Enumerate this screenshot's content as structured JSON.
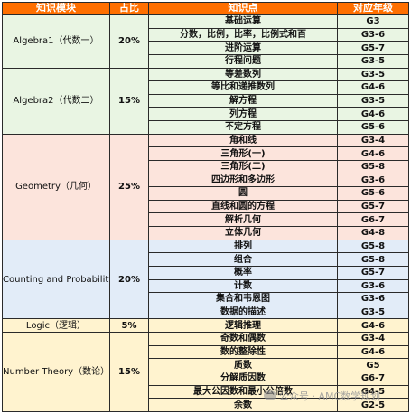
{
  "headers": [
    "知识模块",
    "占比",
    "知识点",
    "对应年级"
  ],
  "colors": {
    "header": "#ff6f00",
    "green": "#e9f5e3",
    "red": "#fce4dc",
    "blue": "#e2ecf8",
    "yellow": "#fff3cf"
  },
  "sections": [
    {
      "module": "Algebra1（代数一）",
      "percent": "20%",
      "color": "#e9f5e3",
      "rows": [
        {
          "topic": "基础运算",
          "grade": "G3"
        },
        {
          "topic": "分数，比例，比率，比例式和百",
          "grade": "G3-6"
        },
        {
          "topic": "进阶运算",
          "grade": "G5-7"
        },
        {
          "topic": "行程问题",
          "grade": "G3-5"
        }
      ]
    },
    {
      "module": "Algebra2（代数二）",
      "percent": "15%",
      "color": "#e9f5e3",
      "rows": [
        {
          "topic": "等差数列",
          "grade": "G3-5"
        },
        {
          "topic": "等比和递推数列",
          "grade": "G4-6"
        },
        {
          "topic": "解方程",
          "grade": "G3-5"
        },
        {
          "topic": "列方程",
          "grade": "G4-6"
        },
        {
          "topic": "不定方程",
          "grade": "G5-6"
        }
      ]
    },
    {
      "module": "Geometry（几何）",
      "percent": "25%",
      "color": "#fce4dc",
      "rows": [
        {
          "topic": "角和线",
          "grade": "G3-4"
        },
        {
          "topic": "三角形(一)",
          "grade": "G4-6"
        },
        {
          "topic": "三角形(二)",
          "grade": "G5-8"
        },
        {
          "topic": "四边形和多边形",
          "grade": "G3-6"
        },
        {
          "topic": "圆",
          "grade": "G5-6"
        },
        {
          "topic": "直线和圆的方程",
          "grade": "G5-7"
        },
        {
          "topic": "解析几何",
          "grade": "G6-7"
        },
        {
          "topic": "立体几何",
          "grade": "G4-8"
        }
      ]
    },
    {
      "module": "Counting and Probability（计数和概率）",
      "percent": "20%",
      "color": "#e2ecf8",
      "rows": [
        {
          "topic": "排列",
          "grade": "G5-8"
        },
        {
          "topic": "组合",
          "grade": "G5-8"
        },
        {
          "topic": "概率",
          "grade": "G5-7"
        },
        {
          "topic": "计数",
          "grade": "G3-6"
        },
        {
          "topic": "集合和韦恩图",
          "grade": "G3-6"
        },
        {
          "topic": "数据的描述",
          "grade": "G3-5"
        }
      ]
    },
    {
      "module": "Logic（逻辑）",
      "percent": "5%",
      "color": "#fff3cf",
      "rows": [
        {
          "topic": "逻辑推理",
          "grade": "G4-6"
        }
      ]
    },
    {
      "module": "Number Theory（数论）",
      "percent": "15%",
      "color": "#fff3cf",
      "rows": [
        {
          "topic": "奇数和偶数",
          "grade": "G3-4"
        },
        {
          "topic": "数的整除性",
          "grade": "G4-6"
        },
        {
          "topic": "质数",
          "grade": "G5"
        },
        {
          "topic": "分解质因数",
          "grade": "G6-7"
        },
        {
          "topic": "最大公因数和最小公倍数",
          "grade": "G4-5"
        },
        {
          "topic": "余数",
          "grade": "G2-5"
        }
      ]
    }
  ],
  "watermark": "公众号 · AMC数学规划"
}
